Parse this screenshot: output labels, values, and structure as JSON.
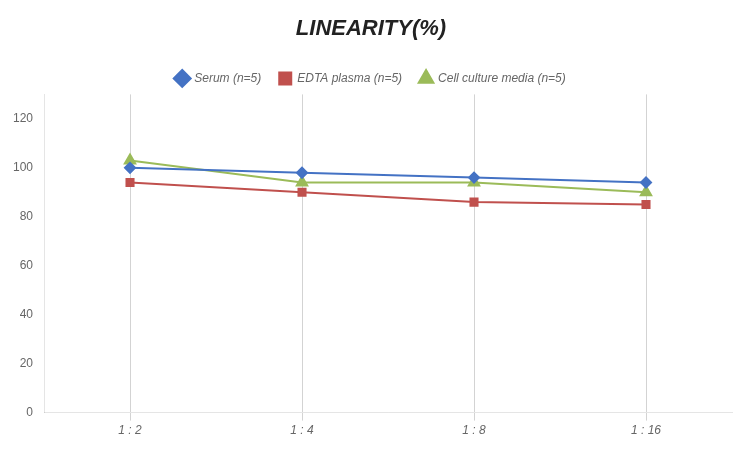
{
  "chart_data": {
    "type": "line",
    "title": "LINEARITY(%)",
    "categories": [
      "1 : 2",
      "1 : 4",
      "1 : 8",
      "1 : 16"
    ],
    "series": [
      {
        "name": "Serum (n=5)",
        "color": "#4472C4",
        "marker": "diamond",
        "values": [
          100,
          98,
          96,
          94
        ]
      },
      {
        "name": "EDTA plasma (n=5)",
        "color": "#C0504D",
        "marker": "square",
        "values": [
          94,
          90,
          86,
          85
        ]
      },
      {
        "name": "Cell culture media (n=5)",
        "color": "#9BBB59",
        "marker": "triangle",
        "values": [
          103,
          94,
          94,
          90
        ]
      }
    ],
    "ylim": [
      0,
      130
    ],
    "yticks": [
      0,
      20,
      40,
      60,
      80,
      100,
      120
    ],
    "grid": "x",
    "legend": "top"
  }
}
